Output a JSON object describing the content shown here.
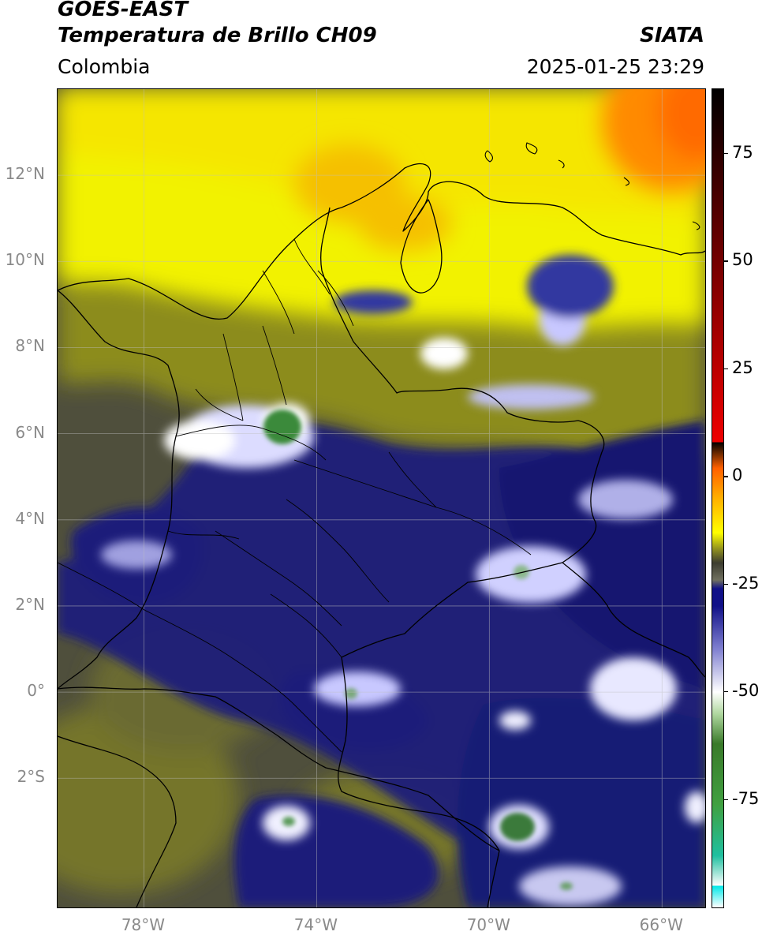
{
  "header": {
    "title_line1": "GOES-EAST",
    "title_line2": "Temperatura de Brillo CH09",
    "brand": "SIATA",
    "region": "Colombia",
    "timestamp": "2025-01-25 23:29"
  },
  "map": {
    "extent_lon": [
      -80.0,
      -65.0
    ],
    "extent_lat": [
      -5.0,
      14.0
    ],
    "lat_ticks": [
      {
        "value": 12,
        "label": "12°N"
      },
      {
        "value": 10,
        "label": "10°N"
      },
      {
        "value": 8,
        "label": "8°N"
      },
      {
        "value": 6,
        "label": "6°N"
      },
      {
        "value": 4,
        "label": "4°N"
      },
      {
        "value": 2,
        "label": "2°N"
      },
      {
        "value": 0,
        "label": "0°"
      },
      {
        "value": -2,
        "label": "2°S"
      }
    ],
    "lon_ticks": [
      {
        "value": -78,
        "label": "78°W"
      },
      {
        "value": -74,
        "label": "74°W"
      },
      {
        "value": -70,
        "label": "70°W"
      },
      {
        "value": -66,
        "label": "66°W"
      }
    ],
    "gridlines": true,
    "field_colors": {
      "warm_orange": "#f08a00",
      "yellow": "#f2f200",
      "olive": "#8c8c1e",
      "gray_olive": "#4f4f3c",
      "navy": "#1a1f7a",
      "white_cloud": "#f2f2ff",
      "green_core": "#3a8a3a"
    }
  },
  "colorbar": {
    "range": [
      -100,
      90
    ],
    "ticks": [
      {
        "value": 75,
        "label": "75"
      },
      {
        "value": 50,
        "label": "50"
      },
      {
        "value": 25,
        "label": "25"
      },
      {
        "value": 0,
        "label": "0"
      },
      {
        "value": -25,
        "label": "-25"
      },
      {
        "value": -50,
        "label": "-50"
      },
      {
        "value": -75,
        "label": "-75"
      }
    ],
    "stops": [
      {
        "value": -100,
        "color": "#ffffff"
      },
      {
        "value": -95,
        "color": "#ffffff"
      },
      {
        "value": -95,
        "color": "#00e8e8"
      },
      {
        "value": -88,
        "color": "#20c0a0"
      },
      {
        "value": -76,
        "color": "#40a040"
      },
      {
        "value": -62,
        "color": "#3a7a2a"
      },
      {
        "value": -55,
        "color": "#b0d8a0"
      },
      {
        "value": -50,
        "color": "#ffffff"
      },
      {
        "value": -40,
        "color": "#8080d0"
      },
      {
        "value": -30,
        "color": "#101088"
      },
      {
        "value": -26,
        "color": "#101088"
      },
      {
        "value": -24,
        "color": "#707060"
      },
      {
        "value": -20,
        "color": "#3c3c30"
      },
      {
        "value": -17,
        "color": "#8a8a20"
      },
      {
        "value": -13,
        "color": "#ffff00"
      },
      {
        "value": -5,
        "color": "#ffb000"
      },
      {
        "value": 2,
        "color": "#ff6000"
      },
      {
        "value": 8,
        "color": "#ee0000"
      },
      {
        "value": 8,
        "color": "#000000"
      },
      {
        "value": 90,
        "color": "#000000"
      }
    ]
  }
}
